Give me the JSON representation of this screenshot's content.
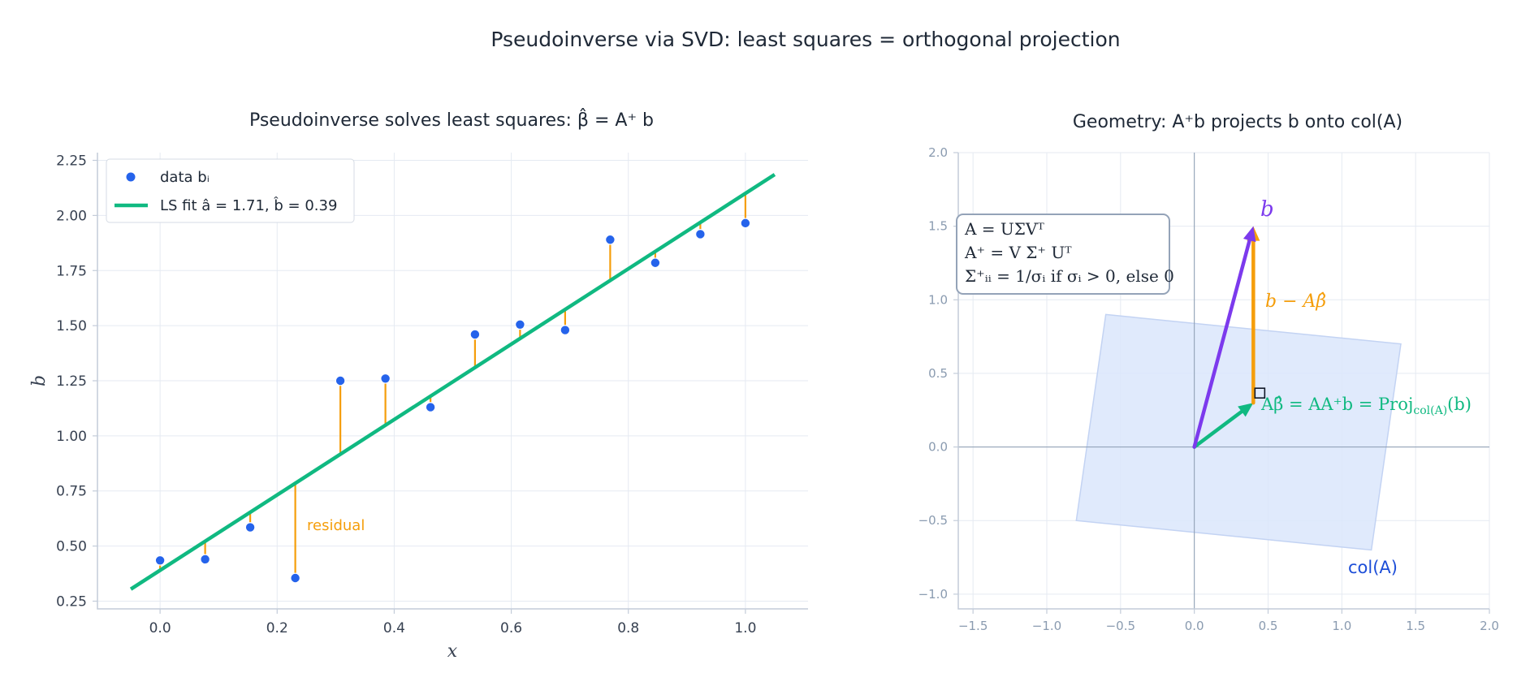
{
  "figure": {
    "title": "Pseudoinverse via SVD: least squares = orthogonal projection"
  },
  "colors": {
    "data": "#2563eb",
    "fit": "#10b981",
    "residual": "#f59e0b",
    "b_vector": "#7c3aed",
    "plane": "#dbe6fb",
    "plane_edge": "#c3d3f3",
    "text": "#1f2937",
    "col_label": "#1d4ed8"
  },
  "chart_data": [
    {
      "type": "scatter",
      "title": "Pseudoinverse solves least squares: β̂ = A⁺ b",
      "xlabel": "x",
      "ylabel": "b",
      "xlim": [
        -0.107,
        1.107
      ],
      "ylim": [
        0.215,
        2.285
      ],
      "xticks": [
        "0.0",
        "0.2",
        "0.4",
        "0.6",
        "0.8",
        "1.0"
      ],
      "yticks": [
        "0.25",
        "0.50",
        "0.75",
        "1.00",
        "1.25",
        "1.50",
        "1.75",
        "2.00",
        "2.25"
      ],
      "grid": true,
      "legend_position": "upper-left",
      "series": [
        {
          "name": "data bᵢ",
          "x": [
            0.0,
            0.077,
            0.154,
            0.231,
            0.308,
            0.385,
            0.462,
            0.538,
            0.615,
            0.692,
            0.769,
            0.846,
            0.923,
            1.0
          ],
          "y": [
            0.435,
            0.44,
            0.585,
            0.355,
            1.25,
            1.26,
            1.13,
            1.46,
            1.505,
            1.48,
            1.89,
            1.785,
            1.915,
            1.965
          ]
        },
        {
          "name": "LS fit  â = 1.71, b̂ = 0.39",
          "slope": 1.71,
          "intercept": 0.39,
          "x_range": [
            -0.05,
            1.05
          ]
        }
      ],
      "annotation": "residual"
    },
    {
      "type": "vector-diagram",
      "title": "Geometry: A⁺b projects b onto col(A)",
      "xlim": [
        -1.6,
        2.0
      ],
      "ylim": [
        -1.1,
        2.0
      ],
      "xticks": [
        "−1.5",
        "−1.0",
        "−0.5",
        "0.0",
        "0.5",
        "1.0",
        "1.5",
        "2.0"
      ],
      "yticks": [
        "−1.0",
        "−0.5",
        "0.0",
        "0.5",
        "1.0",
        "1.5",
        "2.0"
      ],
      "grid": true,
      "plane_corners": [
        [
          -0.6,
          0.9
        ],
        [
          1.4,
          0.7
        ],
        [
          1.2,
          -0.7
        ],
        [
          -0.8,
          -0.5
        ]
      ],
      "b_vector": [
        0.4,
        1.5
      ],
      "projection": [
        0.4,
        0.3
      ],
      "labels": {
        "b": "b",
        "residual": "b − Aβ̂",
        "projection": "Aβ̂ = AA⁺b = Proj",
        "projection_sub": "col(A)",
        "projection_arg": "(b)",
        "plane": "col(A)"
      },
      "svd_box": [
        "A = UΣVᵀ",
        "A⁺ = V Σ⁺ Uᵀ",
        "Σ⁺ᵢᵢ = 1/σᵢ  if σᵢ > 0, else 0"
      ]
    }
  ]
}
